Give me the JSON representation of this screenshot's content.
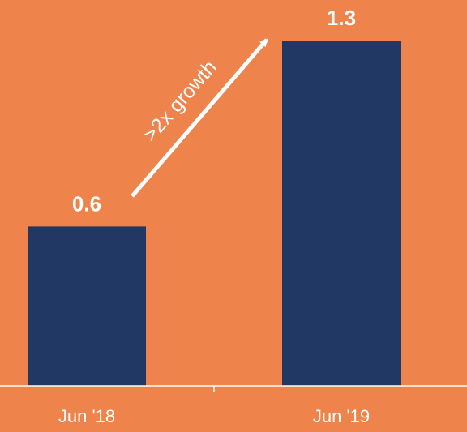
{
  "chart_data": {
    "type": "bar",
    "categories": [
      "Jun '18",
      "Jun '19"
    ],
    "values": [
      0.6,
      1.3
    ],
    "value_labels": [
      "0.6",
      "1.3"
    ],
    "ylim": [
      0,
      1.3
    ],
    "grid": false,
    "annotation": ">2x growth",
    "colors": {
      "background": "#ee834b",
      "bar": "#213864",
      "text": "#ffffff",
      "axis": "#ffffff"
    }
  }
}
